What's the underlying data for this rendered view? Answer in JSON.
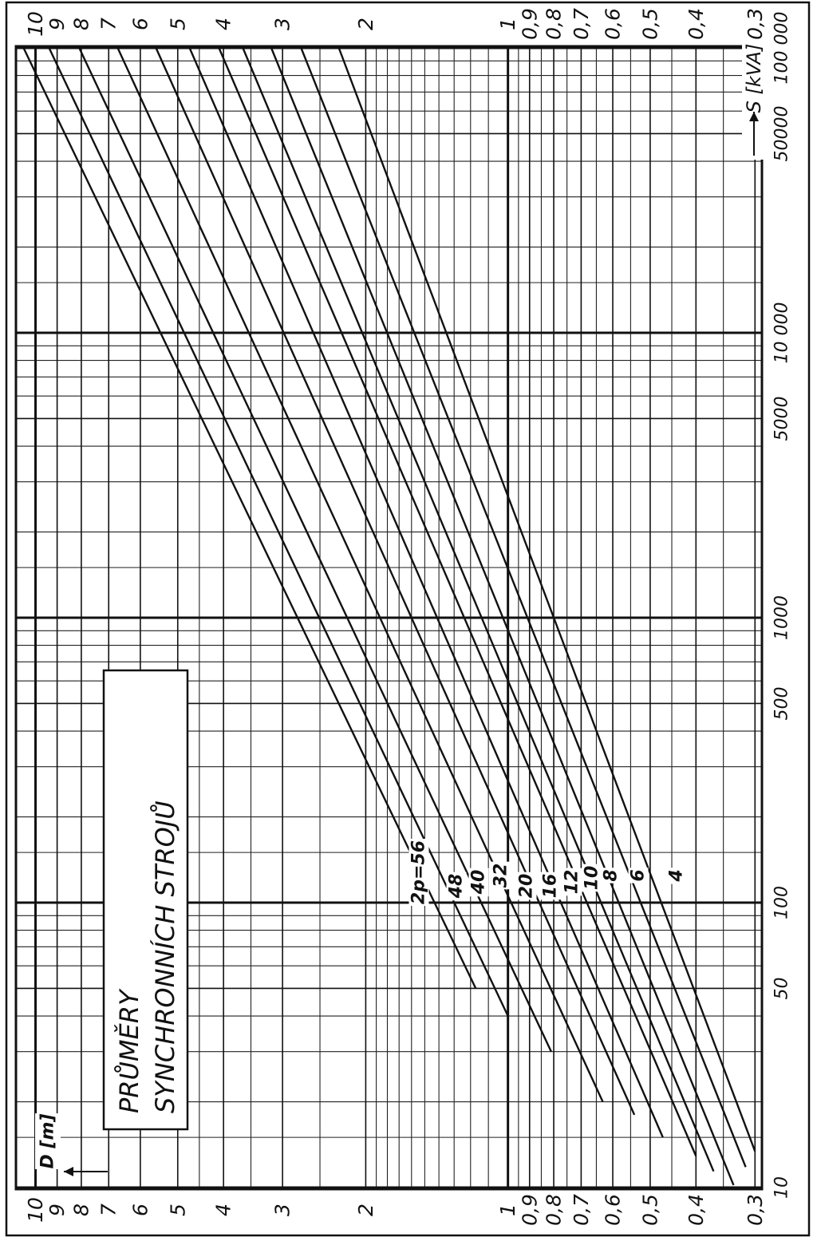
{
  "chart_data": {
    "type": "line",
    "title": "PRŮMĚRY",
    "subtitle": "SYNCHRONNÍCH STROJŮ",
    "x_label": "S [kVA]",
    "y_label": "D [m]",
    "x_scale": "log",
    "y_scale": "log",
    "xlim": [
      10,
      100000
    ],
    "ylim": [
      0.29,
      11
    ],
    "xticks": [
      10,
      50,
      100,
      500,
      1000,
      5000,
      {
        "value": 10000,
        "label": "10 000"
      },
      50000,
      {
        "value": 100000,
        "label": "100 000"
      }
    ],
    "yticks": [
      10,
      9,
      8,
      7,
      6,
      5,
      4,
      3,
      2,
      1,
      {
        "value": 0.9,
        "label": "0,9"
      },
      {
        "value": 0.8,
        "label": "0,8"
      },
      {
        "value": 0.7,
        "label": "0,7"
      },
      {
        "value": 0.6,
        "label": "0,6"
      },
      {
        "value": 0.5,
        "label": "0,5"
      },
      {
        "value": 0.4,
        "label": "0,4"
      },
      {
        "value": 0.3,
        "label": "0,3"
      }
    ],
    "minor_xticks": [
      15,
      20,
      30,
      40,
      60,
      70,
      80,
      90,
      150,
      200,
      300,
      400,
      600,
      700,
      800,
      900,
      1500,
      2000,
      3000,
      4000,
      6000,
      7000,
      8000,
      9000,
      15000,
      20000,
      30000,
      40000,
      60000,
      70000,
      80000,
      90000
    ],
    "minor_yticks": [
      1.1,
      1.2,
      1.3,
      1.4,
      1.5,
      1.6,
      1.7,
      1.8,
      1.9,
      2.5,
      3.5,
      4.5,
      0.95,
      0.85,
      0.75,
      0.65,
      0.55,
      0.45,
      0.35
    ],
    "grid": true,
    "color": "#111111",
    "series": [
      {
        "name": "2p=56",
        "x": [
          100000,
          50
        ],
        "values": [
          10.6,
          1.17
        ]
      },
      {
        "name": "48",
        "x": [
          100000,
          40
        ],
        "values": [
          9.36,
          1.0
        ]
      },
      {
        "name": "40",
        "x": [
          100000,
          30
        ],
        "values": [
          8.08,
          0.81
        ]
      },
      {
        "name": "32",
        "x": [
          100000,
          20
        ],
        "values": [
          6.7,
          0.63
        ]
      },
      {
        "name": "20",
        "x": [
          100000,
          18
        ],
        "values": [
          5.56,
          0.54
        ]
      },
      {
        "name": "16",
        "x": [
          100000,
          15
        ],
        "values": [
          4.72,
          0.47
        ]
      },
      {
        "name": "12",
        "x": [
          100000,
          12.9
        ],
        "values": [
          4.09,
          0.4
        ]
      },
      {
        "name": "10",
        "x": [
          100000,
          11.4
        ],
        "values": [
          3.64,
          0.367
        ]
      },
      {
        "name": "8",
        "x": [
          100000,
          10.2
        ],
        "values": [
          3.17,
          0.333
        ]
      },
      {
        "name": "6",
        "x": [
          100000,
          11.8
        ],
        "values": [
          2.74,
          0.314
        ]
      },
      {
        "name": "4",
        "x": [
          100000,
          13.4
        ],
        "values": [
          2.28,
          0.3
        ]
      }
    ]
  }
}
